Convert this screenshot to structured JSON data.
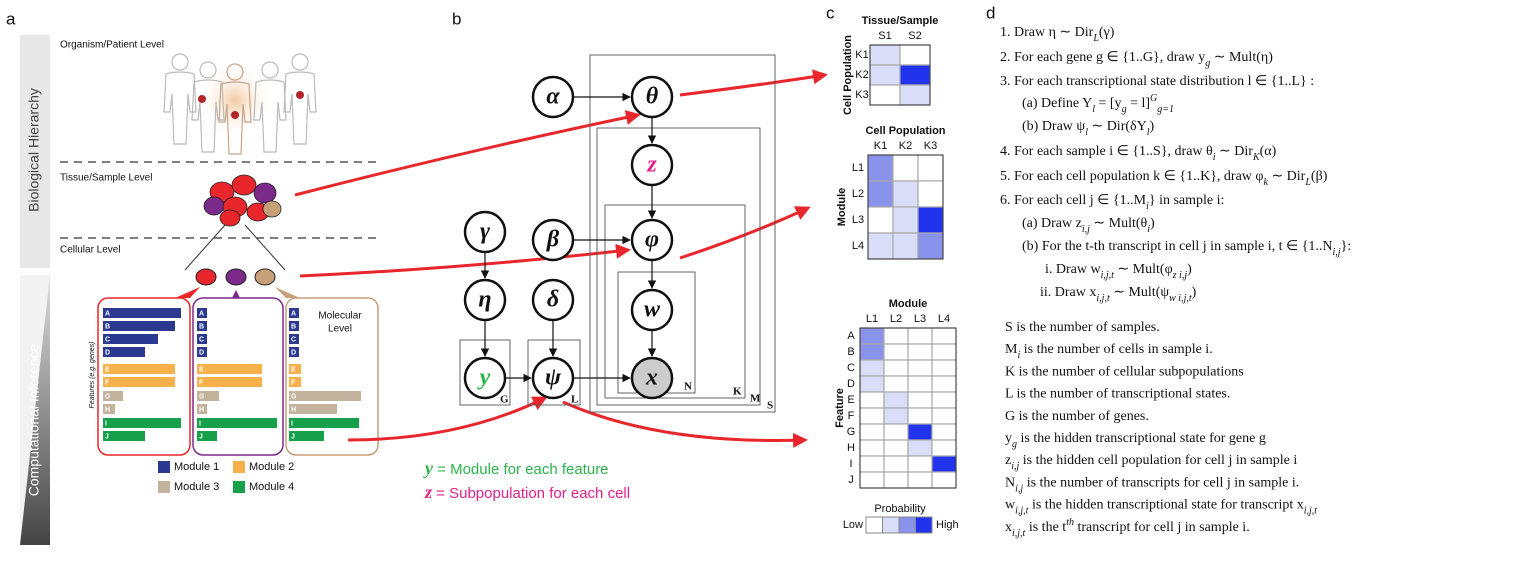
{
  "panel_labels": [
    "a",
    "b",
    "c",
    "d"
  ],
  "a": {
    "hierarchy_labels": [
      "Biological Hierarchy",
      "Computational Inference"
    ],
    "levels": [
      "Organism/Patient Level",
      "Tissue/Sample Level",
      "Cellular Level"
    ],
    "molecular_level": [
      "Molecular",
      "Level"
    ],
    "feature_axis": "Features (e.g. genes)",
    "features": [
      "A",
      "B",
      "C",
      "D",
      "E",
      "F",
      "G",
      "H",
      "I",
      "J"
    ],
    "feature_modules": [
      0,
      0,
      0,
      0,
      1,
      1,
      2,
      2,
      3,
      3
    ],
    "bar_lengths": [
      [
        78,
        72,
        55,
        42,
        72,
        72,
        20,
        12,
        78,
        42
      ],
      [
        10,
        10,
        10,
        10,
        65,
        65,
        22,
        10,
        80,
        20
      ],
      [
        10,
        10,
        10,
        10,
        12,
        12,
        72,
        48,
        70,
        35
      ]
    ],
    "modules": [
      {
        "name": "Module 1",
        "color": "#2b3990"
      },
      {
        "name": "Module 2",
        "color": "#f7b04a"
      },
      {
        "name": "Module 3",
        "color": "#c4b39c"
      },
      {
        "name": "Module 4",
        "color": "#16a04a"
      }
    ]
  },
  "b": {
    "nodes": [
      {
        "label": "α"
      },
      {
        "label": "θ"
      },
      {
        "label": "z"
      },
      {
        "label": "γ"
      },
      {
        "label": "β"
      },
      {
        "label": "φ"
      },
      {
        "label": "η"
      },
      {
        "label": "δ"
      },
      {
        "label": "w"
      },
      {
        "label": "y"
      },
      {
        "label": "ψ"
      },
      {
        "label": "x"
      }
    ],
    "plates": [
      "G",
      "L",
      "N",
      "K",
      "M",
      "S"
    ],
    "legend": [
      {
        "symbol": "y",
        "text": " = Module for each feature"
      },
      {
        "symbol": "z",
        "text": " = Subpopulation for each cell"
      }
    ]
  },
  "c": {
    "colors": [
      "#ffffff",
      "#d9ddf8",
      "#8a93ec",
      "#2233ee"
    ],
    "tissue": {
      "title": "Tissue/Sample",
      "axis": "Cell Population",
      "cols": [
        "S1",
        "S2"
      ],
      "rows": [
        "K1",
        "K2",
        "K3"
      ],
      "values": [
        [
          1,
          0
        ],
        [
          1,
          3
        ],
        [
          0,
          1
        ]
      ]
    },
    "module": {
      "title": "Cell Population",
      "axis": "Module",
      "cols": [
        "K1",
        "K2",
        "K3"
      ],
      "rows": [
        "L1",
        "L2",
        "L3",
        "L4"
      ],
      "values": [
        [
          2,
          0,
          0
        ],
        [
          2,
          1,
          0
        ],
        [
          0,
          1,
          3
        ],
        [
          1,
          1,
          2
        ]
      ]
    },
    "feature": {
      "title": "Module",
      "axis": "Feature",
      "cols": [
        "L1",
        "L2",
        "L3",
        "L4"
      ],
      "rows": [
        "A",
        "B",
        "C",
        "D",
        "E",
        "F",
        "G",
        "H",
        "I",
        "J"
      ],
      "values": [
        [
          2,
          0,
          0,
          0
        ],
        [
          2,
          0,
          0,
          0
        ],
        [
          1,
          0,
          0,
          0
        ],
        [
          1,
          0,
          0,
          0
        ],
        [
          0,
          1,
          0,
          0
        ],
        [
          0,
          1,
          0,
          0
        ],
        [
          0,
          0,
          3,
          0
        ],
        [
          0,
          0,
          1,
          0
        ],
        [
          0,
          0,
          0,
          3
        ],
        [
          0,
          0,
          0,
          0
        ]
      ]
    },
    "legend": {
      "title": "Probability",
      "low": "Low",
      "high": "High",
      "levels": [
        0,
        1,
        2,
        3
      ]
    }
  },
  "d": {
    "steps": [
      [
        "1. Draw η ∼ Dir",
        {
          "sub": "L"
        },
        "(γ)"
      ],
      [
        "2. For each gene g ∈ {1..G}, draw y",
        {
          "sub": "g"
        },
        " ∼ Mult(η)"
      ],
      [
        "3. For each transcriptional state distribution l ∈ {1..L} :"
      ],
      [
        "(a) Define Y",
        {
          "sub": "l"
        },
        " = [y",
        {
          "sub": "g"
        },
        " = l]",
        {
          "sup": "G"
        },
        {
          "sub": "g=1"
        }
      ],
      [
        "(b) Draw ψ",
        {
          "sub": "l"
        },
        " ∼ Dir(δY",
        {
          "sub": "l"
        },
        ")"
      ],
      [
        "4. For each sample i ∈ {1..S}, draw θ",
        {
          "sub": "i"
        },
        " ∼ Dir",
        {
          "sub": "K"
        },
        "(α)"
      ],
      [
        "5. For each cell population k ∈ {1..K}, draw φ",
        {
          "sub": "k"
        },
        " ∼ Dir",
        {
          "sub": "L"
        },
        "(β)"
      ],
      [
        "6. For each cell j ∈ {1..M",
        {
          "sub": "i"
        },
        "} in sample i:"
      ],
      [
        "(a) Draw z",
        {
          "sub": "i,j"
        },
        " ∼ Mult(θ",
        {
          "sub": "i"
        },
        ")"
      ],
      [
        "(b) For the t-th transcript in cell j in sample i, t ∈ {1..N",
        {
          "sub": "i,j"
        },
        "}:"
      ],
      [
        "i. Draw w",
        {
          "sub": "i,j,t"
        },
        " ∼ Mult(φ",
        {
          "sub": "z i,j"
        },
        ")"
      ],
      [
        "ii. Draw x",
        {
          "sub": "i,j,t"
        },
        " ∼ Mult(ψ",
        {
          "sub": "w i,j,t"
        },
        ")"
      ]
    ],
    "definitions": [
      [
        "S is the number of samples."
      ],
      [
        "M",
        {
          "sub": "i"
        },
        " is the number of cells in sample i."
      ],
      [
        "K is the number of cellular subpopulations"
      ],
      [
        "L is the number of transcriptional states."
      ],
      [
        "G is the number of genes."
      ],
      [
        "y",
        {
          "sub": "g"
        },
        " is the hidden transcriptional state for gene g"
      ],
      [
        "z",
        {
          "sub": "i,j"
        },
        " is the hidden cell population for cell j in sample i"
      ],
      [
        "N",
        {
          "sub": "i,j"
        },
        " is the number of transcripts for cell j in sample i."
      ],
      [
        "w",
        {
          "sub": "i,j,t"
        },
        " is the hidden transcriptional state for transcript x",
        {
          "sub": "i,j,t"
        }
      ],
      [
        "x",
        {
          "sub": "i,j,t"
        },
        " is the t",
        {
          "sup": "th"
        },
        " transcript for cell j in sample i."
      ]
    ]
  }
}
